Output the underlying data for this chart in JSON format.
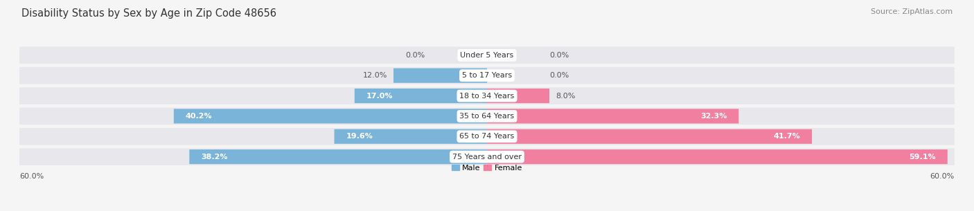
{
  "title": "Disability Status by Sex by Age in Zip Code 48656",
  "source": "Source: ZipAtlas.com",
  "categories": [
    "Under 5 Years",
    "5 to 17 Years",
    "18 to 34 Years",
    "35 to 64 Years",
    "65 to 74 Years",
    "75 Years and over"
  ],
  "male_values": [
    0.0,
    12.0,
    17.0,
    40.2,
    19.6,
    38.2
  ],
  "female_values": [
    0.0,
    0.0,
    8.0,
    32.3,
    41.7,
    59.1
  ],
  "male_color": "#7ab4d8",
  "female_color": "#f07fa0",
  "bg_color": "#f5f5f5",
  "row_bg_color": "#e8e8ec",
  "max_val": 60.0,
  "title_fontsize": 10.5,
  "source_fontsize": 8,
  "label_fontsize": 8,
  "category_fontsize": 8,
  "tick_fontsize": 8
}
